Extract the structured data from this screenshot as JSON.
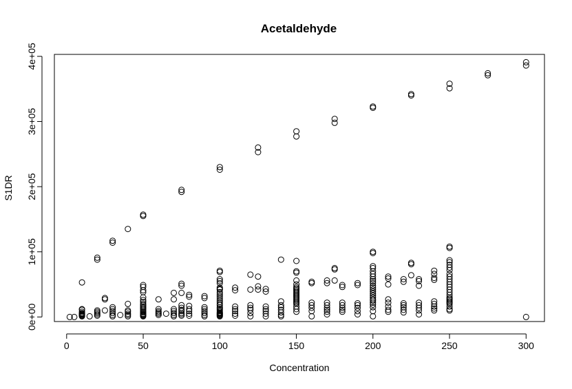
{
  "chart_data": {
    "type": "scatter",
    "title": "Acetaldehyde",
    "xlabel": "Concentration",
    "ylabel": "S1DR",
    "xlim": [
      -8,
      312
    ],
    "ylim": [
      -7000,
      403000
    ],
    "x_ticks": [
      0,
      50,
      100,
      150,
      200,
      250,
      300
    ],
    "x_tick_labels": [
      "0",
      "50",
      "100",
      "150",
      "200",
      "250",
      "300"
    ],
    "y_ticks": [
      0,
      100000,
      200000,
      300000,
      400000
    ],
    "y_tick_labels": [
      "0e+00",
      "1e+05",
      "2e+05",
      "3e+05",
      "4e+05"
    ],
    "grid": false,
    "legend": "none",
    "marker": "open-circle",
    "color": "#000000",
    "series": [
      {
        "x": [
          2,
          5,
          10,
          10,
          20,
          20,
          30,
          30,
          40,
          50,
          50,
          75,
          75,
          100,
          100,
          125,
          125,
          150,
          150,
          175,
          175,
          200,
          200,
          225,
          225,
          250,
          250,
          275,
          275,
          300,
          300,
          300
        ],
        "y": [
          0,
          0,
          53000,
          11000,
          88000,
          91000,
          114000,
          117000,
          135000,
          155000,
          157000,
          192000,
          195000,
          226000,
          230000,
          253000,
          260000,
          277000,
          285000,
          298000,
          304000,
          321000,
          323000,
          340000,
          342000,
          351000,
          358000,
          371000,
          374000,
          386000,
          391000,
          0
        ]
      },
      {
        "x": [
          10,
          10,
          10,
          10,
          10,
          10,
          10,
          10,
          15,
          20,
          20,
          20,
          20,
          20,
          25,
          25,
          25,
          30,
          30,
          30,
          30,
          30,
          30,
          35,
          40,
          40,
          40,
          40,
          40,
          40,
          50,
          50,
          50,
          50,
          50,
          50,
          50,
          50,
          50,
          50,
          50,
          50,
          50,
          50,
          50,
          50,
          50,
          50,
          50,
          50,
          60,
          60,
          60,
          60,
          60,
          60,
          65,
          70,
          70,
          70,
          70,
          70,
          70,
          70,
          75,
          75,
          75,
          75,
          75,
          75,
          75,
          75,
          75,
          75,
          80,
          80,
          80,
          80,
          80,
          80,
          80,
          90,
          90,
          90,
          90,
          90,
          90,
          90,
          90,
          100,
          100,
          100,
          100,
          100,
          100,
          100,
          100,
          100,
          100,
          100,
          100,
          100,
          100,
          100,
          100,
          100,
          100,
          100,
          100,
          100,
          100,
          100,
          100,
          100,
          100,
          100,
          110,
          110,
          110,
          110,
          110,
          110,
          110,
          120,
          120,
          120,
          120,
          120,
          120,
          120,
          125,
          125,
          125,
          130,
          130,
          130,
          130,
          130,
          130,
          130,
          140,
          140,
          140,
          140,
          140,
          140,
          140,
          140,
          150,
          150,
          150,
          150,
          150,
          150,
          150,
          150,
          150,
          150,
          150,
          150,
          150,
          150,
          150,
          150,
          150,
          150,
          150,
          150,
          150,
          150,
          160,
          160,
          160,
          160,
          160,
          160,
          160,
          170,
          170,
          170,
          170,
          170,
          170,
          170,
          170,
          175,
          175,
          175,
          180,
          180,
          180,
          180,
          180,
          180,
          180,
          190,
          190,
          190,
          190,
          190,
          190,
          190,
          200,
          200,
          200,
          200,
          200,
          200,
          200,
          200,
          200,
          200,
          200,
          200,
          200,
          200,
          200,
          200,
          200,
          200,
          200,
          200,
          200,
          200,
          200,
          200,
          210,
          210,
          210,
          210,
          210,
          210,
          210,
          210,
          220,
          220,
          220,
          220,
          220,
          220,
          220,
          225,
          225,
          225,
          230,
          230,
          230,
          230,
          230,
          230,
          230,
          230,
          240,
          240,
          240,
          240,
          240,
          240,
          240,
          240,
          240,
          250,
          250,
          250,
          250,
          250,
          250,
          250,
          250,
          250,
          250,
          250,
          250,
          250,
          250,
          250,
          250,
          250,
          250,
          250,
          250,
          250,
          250,
          250,
          250,
          250
        ],
        "y": [
          12000,
          8000,
          6000,
          5000,
          4000,
          3000,
          2000,
          1000,
          1000,
          10000,
          8000,
          6000,
          4000,
          2000,
          29000,
          27000,
          10000,
          15000,
          12000,
          9000,
          6000,
          3000,
          1000,
          3000,
          20000,
          10000,
          8000,
          5000,
          3000,
          1000,
          49000,
          46000,
          41000,
          38000,
          30000,
          26000,
          23000,
          20000,
          18000,
          16000,
          14000,
          12000,
          10000,
          8000,
          7000,
          5000,
          4000,
          3000,
          2000,
          1000,
          27000,
          12000,
          9000,
          7000,
          5000,
          3000,
          5000,
          37000,
          27000,
          12000,
          9000,
          6000,
          3000,
          1000,
          51000,
          48000,
          37000,
          18000,
          14000,
          11000,
          9000,
          6000,
          4000,
          2000,
          34000,
          31000,
          17000,
          12000,
          9000,
          5000,
          2000,
          32000,
          29000,
          15000,
          12000,
          9000,
          6000,
          3000,
          1000,
          71000,
          69000,
          58000,
          55000,
          52000,
          45000,
          42000,
          38000,
          35000,
          32000,
          29000,
          26000,
          23000,
          20000,
          18000,
          15000,
          13000,
          11000,
          9000,
          7000,
          6000,
          5000,
          4000,
          3000,
          2000,
          1000,
          43000,
          41000,
          16000,
          12000,
          9000,
          5000,
          2000,
          45000,
          42000,
          18000,
          14000,
          11000,
          6000,
          1000,
          65000,
          62000,
          47000,
          42000,
          39000,
          16000,
          12000,
          9000,
          5000,
          1000,
          43000,
          24000,
          18000,
          15000,
          11000,
          7000,
          3000,
          1000,
          88000,
          86000,
          70000,
          68000,
          56000,
          50000,
          46000,
          44000,
          42000,
          40000,
          38000,
          36000,
          34000,
          32000,
          30000,
          28000,
          26000,
          24000,
          22000,
          20000,
          16000,
          12000,
          8000,
          54000,
          52000,
          22000,
          18000,
          14000,
          9000,
          1000,
          56000,
          52000,
          22000,
          18000,
          14000,
          11000,
          8000,
          4000,
          75000,
          73000,
          56000,
          49000,
          46000,
          22000,
          18000,
          14000,
          11000,
          8000,
          52000,
          49000,
          21000,
          18000,
          14000,
          9000,
          4000,
          100000,
          98000,
          78000,
          75000,
          70000,
          66000,
          62000,
          58000,
          55000,
          52000,
          48000,
          45000,
          42000,
          39000,
          36000,
          33000,
          30000,
          27000,
          25000,
          22000,
          19000,
          15000,
          9000,
          1000,
          62000,
          59000,
          50000,
          27000,
          22000,
          16000,
          11000,
          8000,
          58000,
          54000,
          21000,
          18000,
          15000,
          11000,
          7000,
          83000,
          81000,
          64000,
          58000,
          55000,
          48000,
          22000,
          18000,
          14000,
          10000,
          4000,
          71000,
          66000,
          60000,
          57000,
          24000,
          20000,
          16000,
          13000,
          10000,
          108000,
          106000,
          87000,
          84000,
          80000,
          76000,
          72000,
          66000,
          62000,
          58000,
          54000,
          50000,
          46000,
          42000,
          38000,
          34000,
          30000,
          28000,
          26000,
          24000,
          22000,
          20000,
          16000,
          12000,
          10000
        ]
      }
    ]
  }
}
